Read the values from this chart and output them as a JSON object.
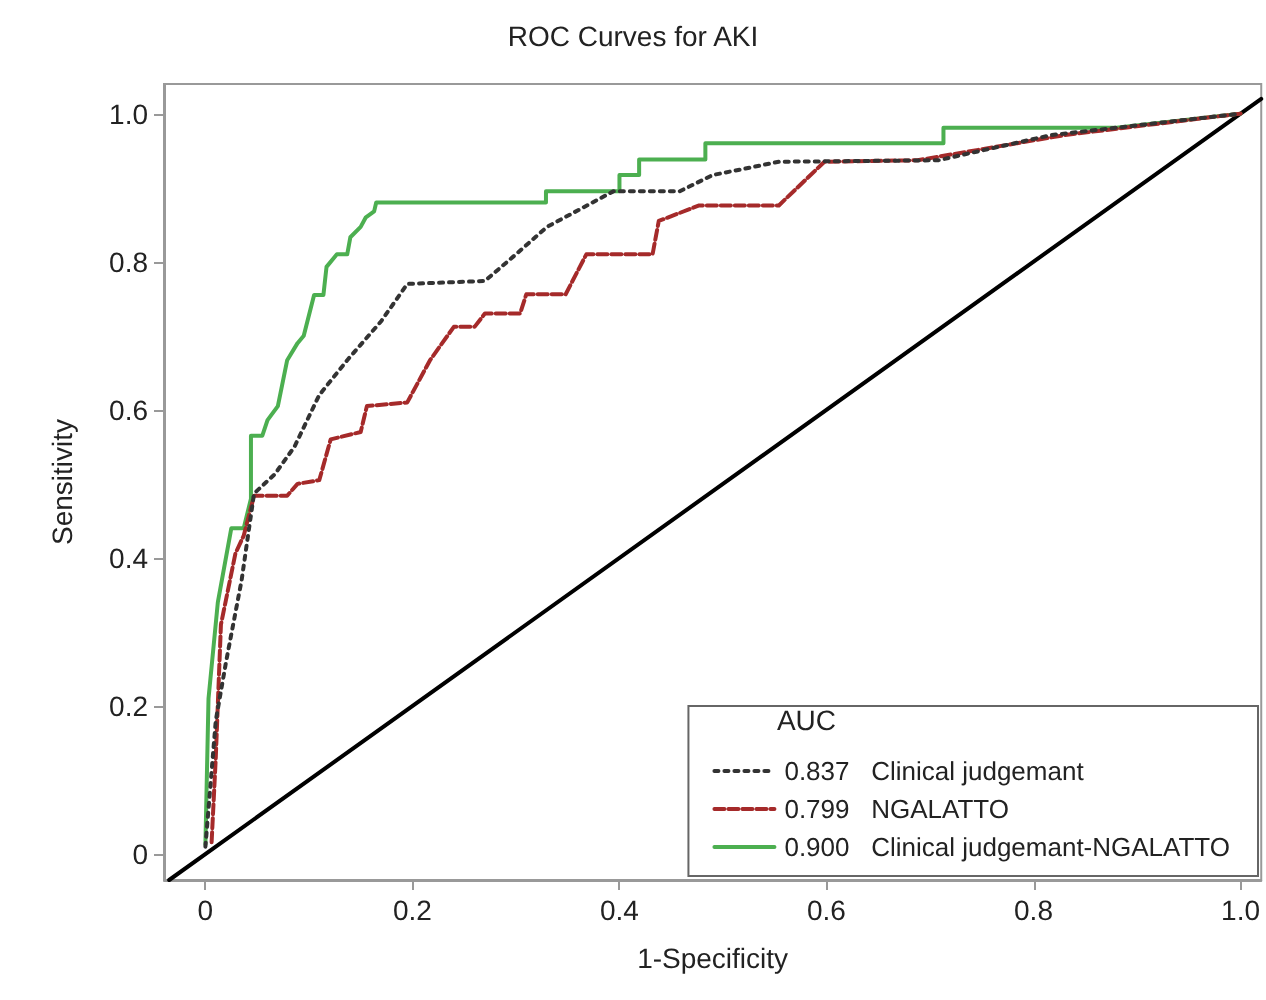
{
  "chart_data": {
    "type": "line",
    "title": "ROC Curves for AKI",
    "xlabel": "1-Specificity",
    "ylabel": "Sensitivity",
    "legend_title": "AUC",
    "legend": "bottom right",
    "grid": false,
    "marker": "none",
    "xlim": [
      -0.04,
      1.02
    ],
    "ylim": [
      -0.035,
      1.04
    ],
    "xticks": [
      {
        "value": 0,
        "label": "0"
      },
      {
        "value": 0.2,
        "label": "0.2"
      },
      {
        "value": 0.4,
        "label": "0.4"
      },
      {
        "value": 0.6,
        "label": "0.6"
      },
      {
        "value": 0.8,
        "label": "0.8"
      },
      {
        "value": 1,
        "label": "1.0"
      }
    ],
    "yticks": [
      {
        "value": 0,
        "label": "0"
      },
      {
        "value": 0.2,
        "label": "0.2"
      },
      {
        "value": 0.4,
        "label": "0.4"
      },
      {
        "value": 0.6,
        "label": "0.6"
      },
      {
        "value": 0.8,
        "label": "0.8"
      },
      {
        "value": 1,
        "label": "1.0"
      }
    ],
    "series": [
      {
        "name": "0.837   Clinical judgemant",
        "color": "#333333",
        "line_style": "dotted",
        "x": [
          0,
          0.01,
          0.02,
          0.035,
          0.047,
          0.067,
          0.086,
          0.11,
          0.137,
          0.17,
          0.195,
          0.27,
          0.3,
          0.33,
          0.394,
          0.458,
          0.49,
          0.554,
          0.708,
          0.817,
          1
        ],
        "values": [
          0.01,
          0.18,
          0.26,
          0.37,
          0.487,
          0.513,
          0.55,
          0.62,
          0.667,
          0.72,
          0.77,
          0.774,
          0.81,
          0.847,
          0.895,
          0.895,
          0.917,
          0.935,
          0.937,
          0.971,
          1
        ]
      },
      {
        "name": "0.799   NGALATTO",
        "color": "#a52a2a",
        "line_style": "dashed",
        "x": [
          0.006,
          0.01,
          0.015,
          0.029,
          0.037,
          0.047,
          0.079,
          0.089,
          0.11,
          0.121,
          0.15,
          0.156,
          0.195,
          0.217,
          0.24,
          0.26,
          0.27,
          0.304,
          0.31,
          0.348,
          0.368,
          0.432,
          0.438,
          0.477,
          0.554,
          0.598,
          0.688,
          0.83,
          1
        ],
        "values": [
          0.016,
          0.13,
          0.31,
          0.406,
          0.43,
          0.484,
          0.484,
          0.5,
          0.505,
          0.56,
          0.57,
          0.605,
          0.61,
          0.667,
          0.712,
          0.712,
          0.73,
          0.73,
          0.756,
          0.756,
          0.81,
          0.81,
          0.855,
          0.876,
          0.876,
          0.935,
          0.937,
          0.971,
          1
        ]
      },
      {
        "name": "0.900   Clinical judgemant-NGALATTO",
        "color": "#4caf50",
        "line_style": "solid",
        "x": [
          0,
          0.003,
          0.012,
          0.025,
          0.037,
          0.044,
          0.044,
          0.055,
          0.06,
          0.07,
          0.079,
          0.089,
          0.095,
          0.105,
          0.114,
          0.117,
          0.127,
          0.137,
          0.14,
          0.15,
          0.155,
          0.163,
          0.165,
          0.329,
          0.329,
          0.4,
          0.4,
          0.419,
          0.419,
          0.483,
          0.483,
          0.713,
          0.713,
          0.88,
          1
        ],
        "values": [
          0.013,
          0.21,
          0.34,
          0.44,
          0.44,
          0.48,
          0.565,
          0.565,
          0.586,
          0.605,
          0.667,
          0.69,
          0.7,
          0.755,
          0.755,
          0.793,
          0.81,
          0.81,
          0.833,
          0.847,
          0.86,
          0.868,
          0.88,
          0.88,
          0.895,
          0.895,
          0.917,
          0.917,
          0.938,
          0.938,
          0.96,
          0.96,
          0.981,
          0.981,
          1
        ]
      },
      {
        "color": "#000000",
        "line_style": "solid",
        "x": [
          -0.035,
          1.02
        ],
        "values": [
          -0.035,
          1.02
        ]
      }
    ]
  }
}
